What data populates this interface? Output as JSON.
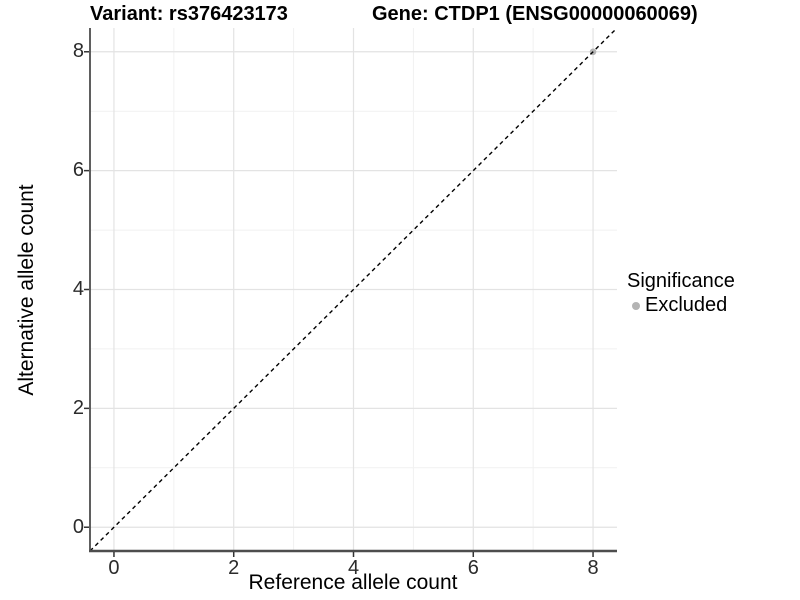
{
  "header": {
    "variant_title": "Variant: rs376423173",
    "gene_title": "Gene: CTDP1 (ENSG00000060069)"
  },
  "chart_data": {
    "type": "scatter",
    "title": "Variant: rs376423173   Gene: CTDP1 (ENSG00000060069)",
    "xlabel": "Reference allele count",
    "ylabel": "Alternative allele count",
    "xlim": [
      -0.4,
      8.4
    ],
    "ylim": [
      -0.4,
      8.4
    ],
    "x_major_ticks": [
      0,
      2,
      4,
      6,
      8
    ],
    "x_minor_ticks": [
      1,
      3,
      5,
      7
    ],
    "y_major_ticks": [
      0,
      2,
      4,
      6,
      8
    ],
    "y_minor_ticks": [
      1,
      3,
      5,
      7
    ],
    "grid": "major+minor",
    "series": [
      {
        "name": "Excluded",
        "color": "#b4b4b4",
        "points": [
          {
            "x": 8,
            "y": 8
          }
        ]
      }
    ],
    "reference_line": {
      "type": "identity",
      "slope": 1,
      "intercept": 0,
      "style": "dashed",
      "color": "#000000"
    },
    "legend": {
      "title": "Significance",
      "position": "right",
      "items": [
        {
          "label": "Excluded",
          "color": "#b4b4b4"
        }
      ]
    }
  },
  "colors": {
    "background": "#ffffff",
    "grid_major": "#e3e3e3",
    "grid_minor": "#f1f1f1",
    "axis_line": "#4d4d4d",
    "tick_mark": "#333333",
    "tick_text": "#2b2b2b",
    "title_text": "#000000"
  }
}
